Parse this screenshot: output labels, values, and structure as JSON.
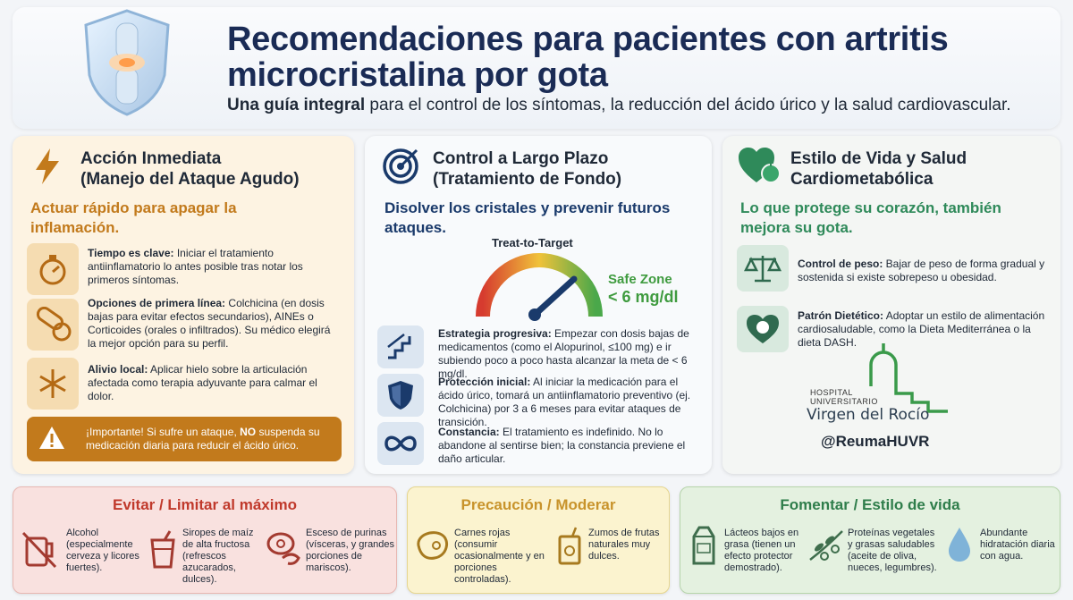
{
  "header": {
    "title_line1": "Recomendaciones para pacientes con artritis",
    "title_line2": "microcristalina por gota",
    "subtitle_bold": "Una guía integral",
    "subtitle_rest": " para el control de los síntomas, la reducción del ácido úrico y la salud cardiovascular."
  },
  "card_acute": {
    "title_line1": "Acción Inmediata",
    "title_line2": "(Manejo del Ataque Agudo)",
    "sub_line1": "Actuar rápido para apagar la",
    "sub_line2": "inflamación.",
    "accent": "#c27a1c",
    "items": [
      {
        "icon": "stopwatch-icon",
        "label": "Tiempo es clave:",
        "text": " Iniciar el tratamiento antiinflamatorio lo antes posible tras notar los primeros síntomas."
      },
      {
        "icon": "pills-icon",
        "label": "Opciones de primera línea:",
        "text": " Colchicina (en dosis bajas para evitar efectos secundarios), AINEs o Corticoides (orales o infiltrados). Su médico elegirá la mejor opción para su perfil."
      },
      {
        "icon": "snowflake-icon",
        "label": "Alivio local:",
        "text": " Aplicar hielo sobre la articulación afectada como terapia adyuvante para calmar el dolor."
      }
    ],
    "warning_pre": "¡Importante!",
    "warning_mid": " Si sufre un ataque, ",
    "warning_no": "NO",
    "warning_post": " suspenda su medicación diaria para reducir el ácido úrico."
  },
  "card_longterm": {
    "title_line1": "Control a Largo Plazo",
    "title_line2": "(Tratamiento de Fondo)",
    "sub_line1": "Disolver los cristales y prevenir futuros",
    "sub_line2": "ataques.",
    "accent": "#1a3a6b",
    "gauge_title": "Treat-to-Target",
    "safe_zone_line1": "Safe Zone",
    "safe_zone_line2": "< 6 mg/dl",
    "items": [
      {
        "icon": "stairs-icon",
        "label": "Estrategia progresiva:",
        "text": " Empezar con dosis bajas de medicamentos (como el Alopurinol, ≤100 mg) e ir subiendo poco a poco hasta alcanzar la meta de < 6 mg/dl."
      },
      {
        "icon": "shield-icon",
        "label": "Protección inicial:",
        "text": " Al iniciar la medicación para el ácido úrico, tomará un antiinflamatorio preventivo (ej. Colchicina) por 3 a 6 meses para evitar ataques de transición."
      },
      {
        "icon": "infinity-icon",
        "label": "Constancia:",
        "text": " El tratamiento es indefinido. No lo abandone al sentirse bien; la constancia previene el daño articular."
      }
    ]
  },
  "card_lifestyle": {
    "title_line1": "Estilo de Vida y Salud",
    "title_line2": "Cardiometabólica",
    "sub_line1": "Lo que protege su corazón, también",
    "sub_line2": "mejora su gota.",
    "accent": "#2f8a5a",
    "items": [
      {
        "icon": "scale-icon",
        "label": "Control de peso:",
        "text": " Bajar de peso de forma gradual y sostenida si existe sobrepeso u obesidad."
      },
      {
        "icon": "heart-plate-icon",
        "label": "Patrón Dietético:",
        "text": " Adoptar un estilo de alimentación cardiosaludable, como la Dieta Mediterránea o la dieta DASH."
      }
    ],
    "hospital_small_1": "HOSPITAL",
    "hospital_small_2": "UNIVERSITARIO",
    "hospital_name": "Virgen del Rocío",
    "handle": "@ReumaHUVR"
  },
  "avoid": {
    "title": "Evitar / Limitar al máximo",
    "color": "#c0392b",
    "items": [
      {
        "icon": "no-beer-icon",
        "text": "Alcohol (especialmente cerveza y licores fuertes)."
      },
      {
        "icon": "soda-cup-icon",
        "text": "Siropes de maíz de alta fructosa (refrescos azucarados, dulces)."
      },
      {
        "icon": "meat-shrimp-icon",
        "text": "Esceso de purinas (vísceras, y grandes porciones de mariscos)."
      }
    ]
  },
  "caution": {
    "title": "Precaución / Moderar",
    "color": "#c8932b",
    "items": [
      {
        "icon": "steak-icon",
        "text": "Carnes rojas (consumir ocasionalmente y en porciones controladas)."
      },
      {
        "icon": "juice-box-icon",
        "text": "Zumos de frutas naturales muy dulces."
      }
    ]
  },
  "encourage": {
    "title": "Fomentar / Estilo de vida",
    "color": "#2e7d4a",
    "items": [
      {
        "icon": "milk-carton-icon",
        "text": "Lácteos bajos en grasa (tienen un efecto protector demostrado)."
      },
      {
        "icon": "olive-branch-icon",
        "text": "Proteínas vegetales y grasas saludables (aceite de oliva, nueces, legumbres)."
      },
      {
        "icon": "water-drop-icon",
        "text": "Abundante hidratación diaria con agua."
      }
    ]
  }
}
